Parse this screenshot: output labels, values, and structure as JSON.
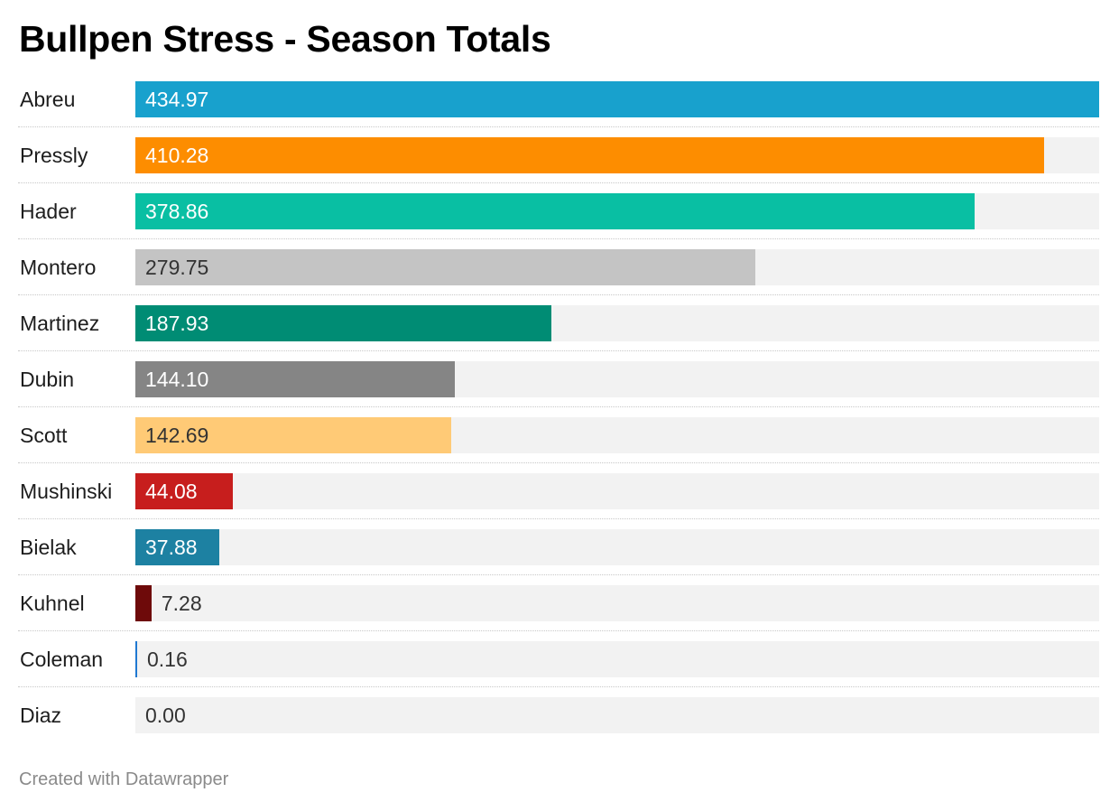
{
  "title": "Bullpen Stress - Season Totals",
  "footer": "Created with Datawrapper",
  "chart_data": {
    "type": "bar",
    "orientation": "horizontal",
    "title": "Bullpen Stress - Season Totals",
    "xlim": [
      0,
      434.97
    ],
    "categories": [
      "Abreu",
      "Pressly",
      "Hader",
      "Montero",
      "Martinez",
      "Dubin",
      "Scott",
      "Mushinski",
      "Bielak",
      "Kuhnel",
      "Coleman",
      "Diaz"
    ],
    "values": [
      434.97,
      410.28,
      378.86,
      279.75,
      187.93,
      144.1,
      142.69,
      44.08,
      37.88,
      7.28,
      0.16,
      0.0
    ],
    "value_labels": [
      "434.97",
      "410.28",
      "378.86",
      "279.75",
      "187.93",
      "144.10",
      "142.69",
      "44.08",
      "37.88",
      "7.28",
      "0.16",
      "0.00"
    ],
    "colors": [
      "#18a1cd",
      "#fd8d00",
      "#09bfa3",
      "#c4c4c4",
      "#008c74",
      "#858585",
      "#ffca76",
      "#c71e1d",
      "#1d81a2",
      "#6e0a0a",
      "#1f78d1",
      "#cccccc"
    ],
    "label_colors": [
      "#ffffff",
      "#ffffff",
      "#ffffff",
      "#333333",
      "#ffffff",
      "#ffffff",
      "#333333",
      "#ffffff",
      "#ffffff",
      "#333333",
      "#333333",
      "#333333"
    ],
    "track_color": "#f2f2f2",
    "grid": false,
    "legend": "none"
  }
}
